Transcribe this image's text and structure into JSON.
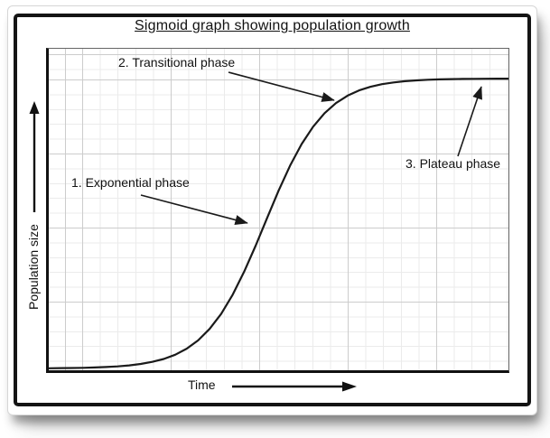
{
  "chart_data": {
    "type": "line",
    "title": "Sigmoid graph showing population growth",
    "xlabel": "Time",
    "ylabel": "Population size",
    "x_range": [
      0,
      100
    ],
    "y_range": [
      0,
      100
    ],
    "grid": "minor and major gridlines, no tick labels",
    "legend": "none",
    "axis_style": "thick black left/bottom axes with arrowheads, no numeric ticks",
    "annotations": [
      {
        "label": "1. Exponential phase",
        "points_to": "steep rising section of curve"
      },
      {
        "label": "2. Transitional phase",
        "points_to": "curve bend approaching plateau"
      },
      {
        "label": "3. Plateau phase",
        "points_to": "flat top section of curve"
      }
    ],
    "points": [
      [
        0,
        0.07
      ],
      [
        2.5,
        0.11
      ],
      [
        5,
        0.16
      ],
      [
        7.5,
        0.23
      ],
      [
        10,
        0.34
      ],
      [
        12.5,
        0.49
      ],
      [
        15,
        0.72
      ],
      [
        17.5,
        1.06
      ],
      [
        20,
        1.55
      ],
      [
        22.5,
        2.26
      ],
      [
        25,
        3.28
      ],
      [
        27.5,
        4.74
      ],
      [
        30,
        6.82
      ],
      [
        32.5,
        9.7
      ],
      [
        35,
        13.63
      ],
      [
        37.5,
        18.82
      ],
      [
        40,
        25.41
      ],
      [
        42.5,
        33.36
      ],
      [
        45,
        42.37
      ],
      [
        47.5,
        51.92
      ],
      [
        50,
        61.35
      ],
      [
        52.5,
        69.98
      ],
      [
        55,
        77.4
      ],
      [
        57.5,
        83.41
      ],
      [
        60,
        88.08
      ],
      [
        62.5,
        91.57
      ],
      [
        65,
        94.1
      ],
      [
        67.5,
        95.91
      ],
      [
        70,
        97.17
      ],
      [
        72.5,
        98.06
      ],
      [
        75,
        98.67
      ],
      [
        77.5,
        99.09
      ],
      [
        80,
        99.38
      ],
      [
        82.5,
        99.58
      ],
      [
        85,
        99.71
      ],
      [
        87.5,
        99.8
      ],
      [
        90,
        99.87
      ],
      [
        92.5,
        99.91
      ],
      [
        95,
        99.94
      ],
      [
        97.5,
        99.96
      ],
      [
        100,
        99.97
      ]
    ]
  },
  "colors": {
    "curve": "#1a1a1a",
    "frame_border": "#141414",
    "grid_minor": "#ebebeb",
    "grid_major": "#cccccc",
    "plot_border": "#666666",
    "text": "#111111",
    "card_edge": "#d6d6d6"
  }
}
